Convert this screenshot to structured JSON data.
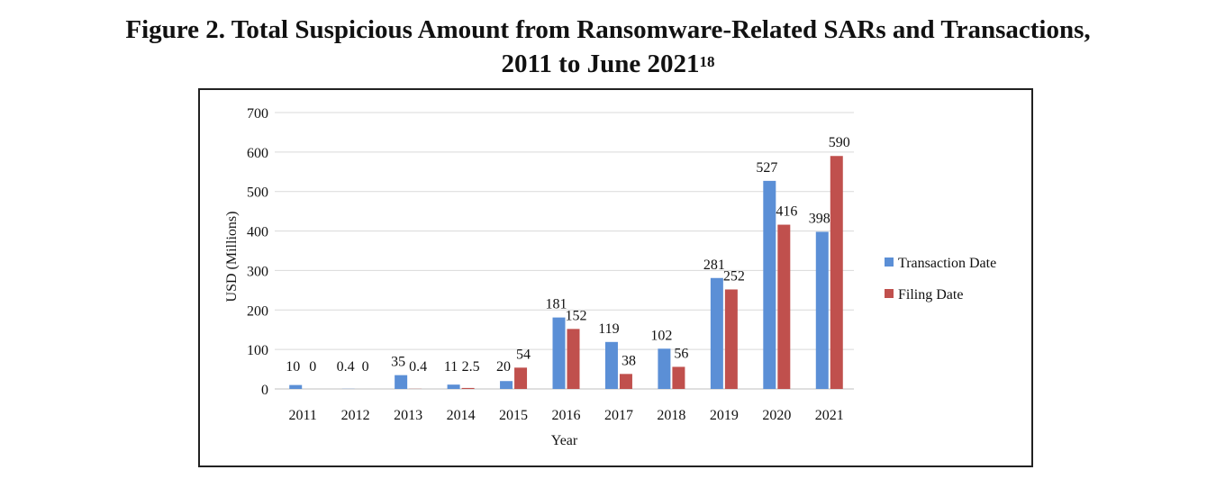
{
  "chart_data": {
    "type": "bar",
    "title": "Figure 2. Total Suspicious Amount from Ransomware-Related SARs and Transactions,",
    "title_line2": "2011 to June 2021",
    "title_footnote": "18",
    "xlabel": "Year",
    "ylabel": "USD (Millions)",
    "ylim": [
      0,
      700
    ],
    "yticks": [
      0,
      100,
      200,
      300,
      400,
      500,
      600,
      700
    ],
    "grid": true,
    "legend_position": "right",
    "categories": [
      "2011",
      "2012",
      "2013",
      "2014",
      "2015",
      "2016",
      "2017",
      "2018",
      "2019",
      "2020",
      "2021"
    ],
    "series": [
      {
        "name": "Transaction Date",
        "color": "#5b8fd6",
        "values": [
          10,
          0.4,
          35,
          11,
          20,
          181,
          119,
          102,
          281,
          527,
          398
        ],
        "labels": [
          "10",
          "0.4",
          "35",
          "11",
          "20",
          "181",
          "119",
          "102",
          "281",
          "527",
          "398"
        ]
      },
      {
        "name": "Filing Date",
        "color": "#c0504d",
        "values": [
          0,
          0,
          0.4,
          2.5,
          54,
          152,
          38,
          56,
          252,
          416,
          590
        ],
        "labels": [
          "0",
          "0",
          "0.4",
          "2.5",
          "54",
          "152",
          "38",
          "56",
          "252",
          "416",
          "590"
        ]
      }
    ]
  }
}
